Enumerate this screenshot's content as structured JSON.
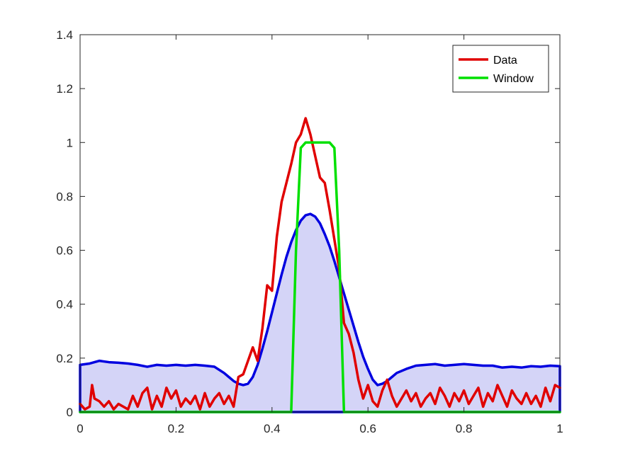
{
  "chart_data": {
    "type": "line",
    "title": "",
    "xlabel": "",
    "ylabel": "",
    "xlim": [
      0,
      1
    ],
    "ylim": [
      0,
      1.4
    ],
    "x_ticks": [
      0,
      0.2,
      0.4,
      0.6,
      0.8,
      1
    ],
    "x_tick_labels": [
      "0",
      "0.2",
      "0.4",
      "0.6",
      "0.8",
      "1"
    ],
    "y_ticks": [
      0,
      0.2,
      0.4,
      0.6,
      0.8,
      1,
      1.2,
      1.4
    ],
    "y_tick_labels": [
      "0",
      "0.2",
      "0.4",
      "0.6",
      "0.8",
      "1",
      "1.2",
      "1.4"
    ],
    "grid": false,
    "legend": {
      "position": "top-right"
    },
    "series": [
      {
        "name": "Data",
        "color": "#e00000",
        "x": [
          0.0,
          0.01,
          0.02,
          0.025,
          0.03,
          0.04,
          0.05,
          0.06,
          0.07,
          0.08,
          0.09,
          0.1,
          0.11,
          0.12,
          0.13,
          0.14,
          0.15,
          0.16,
          0.17,
          0.18,
          0.19,
          0.2,
          0.21,
          0.22,
          0.23,
          0.24,
          0.25,
          0.26,
          0.27,
          0.28,
          0.29,
          0.3,
          0.31,
          0.32,
          0.33,
          0.34,
          0.35,
          0.36,
          0.37,
          0.38,
          0.39,
          0.4,
          0.41,
          0.42,
          0.43,
          0.44,
          0.45,
          0.46,
          0.47,
          0.48,
          0.49,
          0.5,
          0.51,
          0.52,
          0.53,
          0.54,
          0.55,
          0.56,
          0.57,
          0.58,
          0.59,
          0.6,
          0.61,
          0.62,
          0.63,
          0.64,
          0.65,
          0.66,
          0.67,
          0.68,
          0.69,
          0.7,
          0.71,
          0.72,
          0.73,
          0.74,
          0.75,
          0.76,
          0.77,
          0.78,
          0.79,
          0.8,
          0.81,
          0.82,
          0.83,
          0.84,
          0.85,
          0.86,
          0.87,
          0.88,
          0.89,
          0.9,
          0.91,
          0.92,
          0.93,
          0.94,
          0.95,
          0.96,
          0.97,
          0.98,
          0.99,
          1.0
        ],
        "y": [
          0.03,
          0.01,
          0.02,
          0.1,
          0.05,
          0.04,
          0.02,
          0.04,
          0.01,
          0.03,
          0.02,
          0.01,
          0.06,
          0.02,
          0.07,
          0.09,
          0.01,
          0.06,
          0.02,
          0.09,
          0.05,
          0.08,
          0.02,
          0.05,
          0.03,
          0.06,
          0.01,
          0.07,
          0.02,
          0.05,
          0.07,
          0.03,
          0.06,
          0.02,
          0.13,
          0.14,
          0.19,
          0.24,
          0.19,
          0.31,
          0.47,
          0.45,
          0.65,
          0.78,
          0.85,
          0.92,
          1.0,
          1.03,
          1.09,
          1.03,
          0.95,
          0.87,
          0.85,
          0.75,
          0.64,
          0.53,
          0.33,
          0.29,
          0.22,
          0.12,
          0.05,
          0.1,
          0.04,
          0.02,
          0.08,
          0.12,
          0.06,
          0.02,
          0.05,
          0.08,
          0.04,
          0.07,
          0.02,
          0.05,
          0.07,
          0.03,
          0.09,
          0.06,
          0.02,
          0.07,
          0.04,
          0.08,
          0.03,
          0.06,
          0.09,
          0.02,
          0.07,
          0.04,
          0.1,
          0.06,
          0.02,
          0.08,
          0.05,
          0.03,
          0.07,
          0.03,
          0.06,
          0.02,
          0.09,
          0.04,
          0.1,
          0.09
        ],
        "line_width": 3.5
      },
      {
        "name": "Window",
        "color": "#00e000",
        "x": [
          0.0,
          0.4,
          0.44,
          0.45,
          0.46,
          0.47,
          0.48,
          0.49,
          0.5,
          0.51,
          0.52,
          0.53,
          0.54,
          0.55,
          0.56,
          0.6,
          1.0
        ],
        "y": [
          0.0,
          0.0,
          0.0,
          0.6,
          0.98,
          1.0,
          1.0,
          1.0,
          1.0,
          1.0,
          1.0,
          0.98,
          0.6,
          0.0,
          0.0,
          0.0,
          0.0
        ],
        "line_width": 3.5
      },
      {
        "color": "#0000e0",
        "fill": "#d4d4f7",
        "x": [
          0.0,
          0.02,
          0.04,
          0.06,
          0.08,
          0.1,
          0.12,
          0.14,
          0.16,
          0.18,
          0.2,
          0.22,
          0.24,
          0.26,
          0.28,
          0.3,
          0.31,
          0.32,
          0.33,
          0.34,
          0.35,
          0.36,
          0.37,
          0.38,
          0.39,
          0.4,
          0.41,
          0.42,
          0.43,
          0.44,
          0.45,
          0.46,
          0.47,
          0.48,
          0.49,
          0.5,
          0.51,
          0.52,
          0.53,
          0.54,
          0.55,
          0.56,
          0.57,
          0.58,
          0.59,
          0.6,
          0.61,
          0.62,
          0.63,
          0.64,
          0.65,
          0.66,
          0.68,
          0.7,
          0.72,
          0.74,
          0.76,
          0.78,
          0.8,
          0.82,
          0.84,
          0.86,
          0.88,
          0.9,
          0.92,
          0.94,
          0.96,
          0.98,
          1.0
        ],
        "y": [
          0.175,
          0.18,
          0.19,
          0.185,
          0.183,
          0.18,
          0.175,
          0.168,
          0.175,
          0.172,
          0.175,
          0.172,
          0.175,
          0.172,
          0.168,
          0.145,
          0.13,
          0.115,
          0.105,
          0.1,
          0.105,
          0.13,
          0.175,
          0.235,
          0.3,
          0.37,
          0.44,
          0.51,
          0.575,
          0.63,
          0.675,
          0.71,
          0.73,
          0.735,
          0.725,
          0.7,
          0.66,
          0.615,
          0.56,
          0.5,
          0.44,
          0.38,
          0.32,
          0.26,
          0.205,
          0.16,
          0.12,
          0.1,
          0.105,
          0.115,
          0.13,
          0.145,
          0.16,
          0.172,
          0.175,
          0.178,
          0.172,
          0.175,
          0.178,
          0.175,
          0.172,
          0.172,
          0.165,
          0.168,
          0.165,
          0.17,
          0.168,
          0.172,
          0.17
        ],
        "line_width": 3.5
      }
    ]
  }
}
